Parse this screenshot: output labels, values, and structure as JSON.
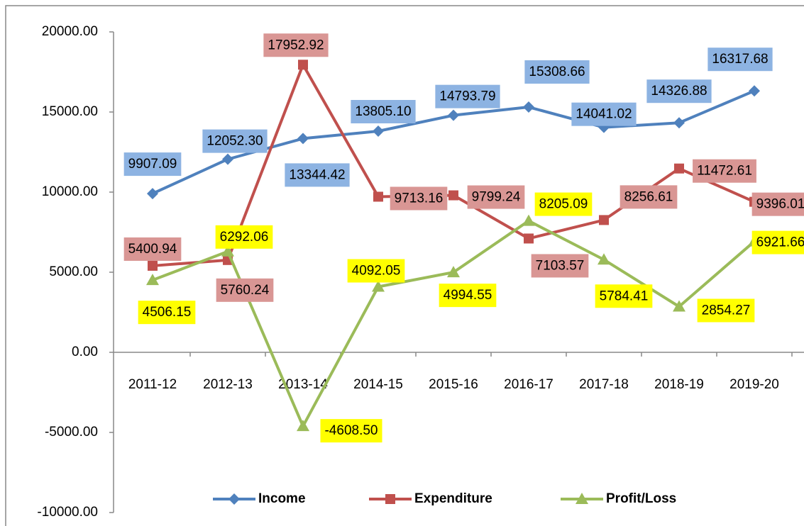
{
  "chart_data": {
    "type": "line",
    "categories": [
      "2011-12",
      "2012-13",
      "2013-14",
      "2014-15",
      "2015-16",
      "2016-17",
      "2017-18",
      "2018-19",
      "2019-20"
    ],
    "series": [
      {
        "name": "Income",
        "color": "#4f81bd",
        "marker": "diamond",
        "label_color": "#8db3e2",
        "values": [
          9907.09,
          12052.3,
          13344.42,
          13805.1,
          14793.79,
          15308.66,
          14041.02,
          14326.88,
          16317.68
        ],
        "value_labels": [
          "9907.09",
          "12052.30",
          "13344.42",
          "13805.10",
          "14793.79",
          "15308.66",
          "14041.02",
          "14326.88",
          "16317.68"
        ]
      },
      {
        "name": "Expenditure",
        "color": "#c0504d",
        "marker": "square",
        "label_color": "#d99694",
        "values": [
          5400.94,
          5760.24,
          17952.92,
          9713.16,
          9799.24,
          7103.57,
          8256.61,
          11472.61,
          9396.01
        ],
        "value_labels": [
          "5400.94",
          "5760.24",
          "17952.92",
          "9713.16",
          "9799.24",
          "7103.57",
          "8256.61",
          "11472.61",
          "9396.01"
        ]
      },
      {
        "name": "Profit/Loss",
        "color": "#9bbb59",
        "marker": "triangle",
        "label_color": "#ffff00",
        "values": [
          4506.15,
          6292.06,
          -4608.5,
          4092.05,
          4994.55,
          8205.09,
          5784.41,
          2854.27,
          6921.66
        ],
        "value_labels": [
          "4506.15",
          "6292.06",
          "-4608.50",
          "4092.05",
          "4994.55",
          "8205.09",
          "5784.41",
          "2854.27",
          "6921.66"
        ]
      }
    ],
    "ylim": [
      -10000,
      20000
    ],
    "yticks": [
      {
        "value": -10000,
        "label": "-10000.00"
      },
      {
        "value": -5000,
        "label": "-5000.00"
      },
      {
        "value": 0,
        "label": "0.00"
      },
      {
        "value": 5000,
        "label": "5000.00"
      },
      {
        "value": 10000,
        "label": "10000.00"
      },
      {
        "value": 15000,
        "label": "15000.00"
      },
      {
        "value": 20000,
        "label": "20000.00"
      }
    ],
    "legend": "bottom"
  }
}
